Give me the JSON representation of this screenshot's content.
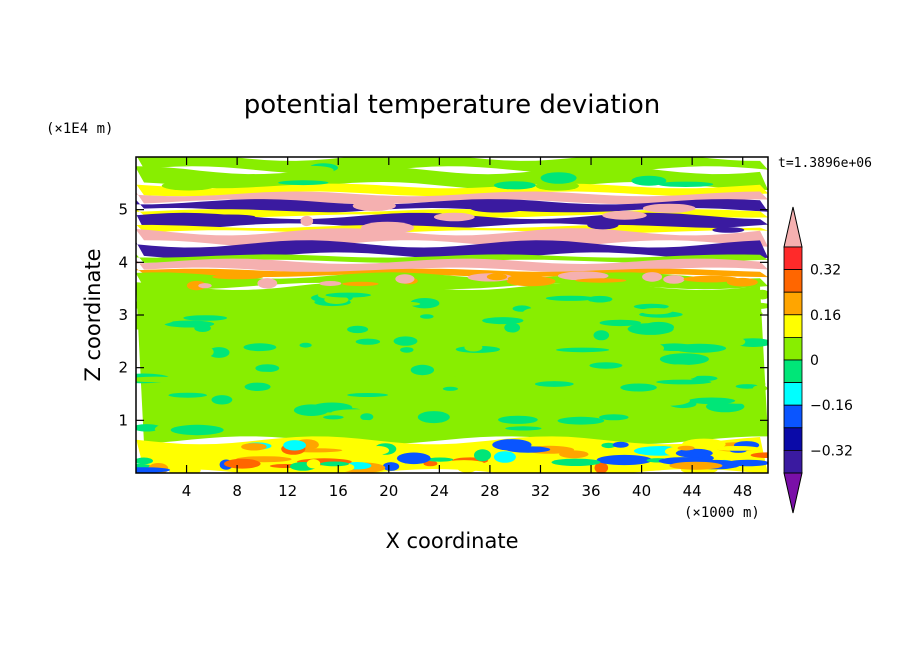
{
  "chart_data": {
    "type": "heatmap",
    "title": "potential temperature deviation",
    "xlabel": "X coordinate",
    "ylabel": "Z coordinate",
    "x_unit": "(×1000 m)",
    "y_unit": "(×1E4 m)",
    "time_label": "t=1.3896e+06",
    "xlim": [
      0,
      50
    ],
    "ylim": [
      0,
      6
    ],
    "x_ticks": [
      "4",
      "8",
      "12",
      "16",
      "20",
      "24",
      "28",
      "32",
      "36",
      "40",
      "44",
      "48"
    ],
    "y_ticks": [
      "1",
      "2",
      "3",
      "4",
      "5"
    ],
    "colorbar": {
      "labels": [
        "0.32",
        "0.16",
        "0",
        "−0.16",
        "−0.32"
      ],
      "levels": [
        -0.4,
        -0.32,
        -0.24,
        -0.16,
        -0.08,
        0,
        0.08,
        0.16,
        0.24,
        0.32,
        0.4
      ],
      "colors": [
        "#7a0fa8",
        "#3a1aa0",
        "#0a0aa8",
        "#0a55ff",
        "#00ffff",
        "#00e678",
        "#88ee00",
        "#ffff00",
        "#ffa500",
        "#ff6600",
        "#ff2a2a",
        "#f5b0b0"
      ]
    },
    "layers": [
      {
        "z": [
          5.75,
          6.0
        ],
        "value": 0.04
      },
      {
        "z": [
          5.45,
          5.75
        ],
        "value": 0.0
      },
      {
        "z": [
          5.3,
          5.45
        ],
        "value": 0.1
      },
      {
        "z": [
          5.15,
          5.3
        ],
        "value": 0.4
      },
      {
        "z": [
          4.98,
          5.15
        ],
        "value": -0.4
      },
      {
        "z": [
          4.88,
          4.98
        ],
        "value": 0.12
      },
      {
        "z": [
          4.68,
          4.88
        ],
        "value": -0.4
      },
      {
        "z": [
          4.58,
          4.68
        ],
        "value": 0.1
      },
      {
        "z": [
          4.35,
          4.58
        ],
        "value": 0.4
      },
      {
        "z": [
          4.12,
          4.35
        ],
        "value": -0.4
      },
      {
        "z": [
          4.02,
          4.12
        ],
        "value": 0.06
      },
      {
        "z": [
          3.85,
          4.02
        ],
        "value": 0.4
      },
      {
        "z": [
          3.75,
          3.85
        ],
        "value": 0.2
      },
      {
        "z": [
          3.55,
          3.75
        ],
        "value": 0.03
      },
      {
        "z": [
          0.62,
          3.55
        ],
        "value": 0.02
      },
      {
        "z": [
          0.0,
          0.62
        ],
        "value": 0.1
      }
    ]
  }
}
